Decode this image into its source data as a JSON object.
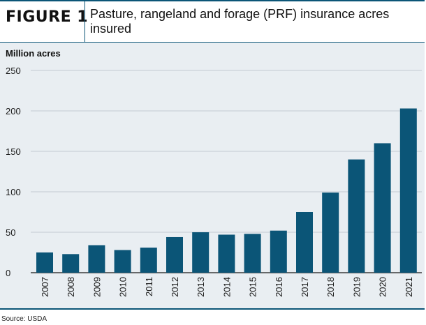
{
  "figure": {
    "label": "FIGURE 1",
    "title": "Pasture, rangeland and forage (PRF) insurance acres insured",
    "unit_label": "Million acres",
    "source": "Source: USDA"
  },
  "colors": {
    "bar": "#0b5577",
    "frame_border": "#0b5577",
    "panel_background": "#e9eef2",
    "gridline": "#c4cbd1"
  },
  "chart_data": {
    "type": "bar",
    "title": "Pasture, rangeland and forage (PRF) insurance acres insured",
    "ylabel": "Million acres",
    "xlabel": "",
    "ylim": [
      0,
      250
    ],
    "yticks": [
      0,
      50,
      100,
      150,
      200,
      250
    ],
    "grid": true,
    "categories": [
      "2007",
      "2008",
      "2009",
      "2010",
      "2011",
      "2012",
      "2013",
      "2014",
      "2015",
      "2016",
      "2017",
      "2018",
      "2019",
      "2020",
      "2021"
    ],
    "values": [
      25,
      23,
      34,
      28,
      31,
      44,
      50,
      47,
      48,
      52,
      75,
      99,
      140,
      160,
      203
    ]
  }
}
